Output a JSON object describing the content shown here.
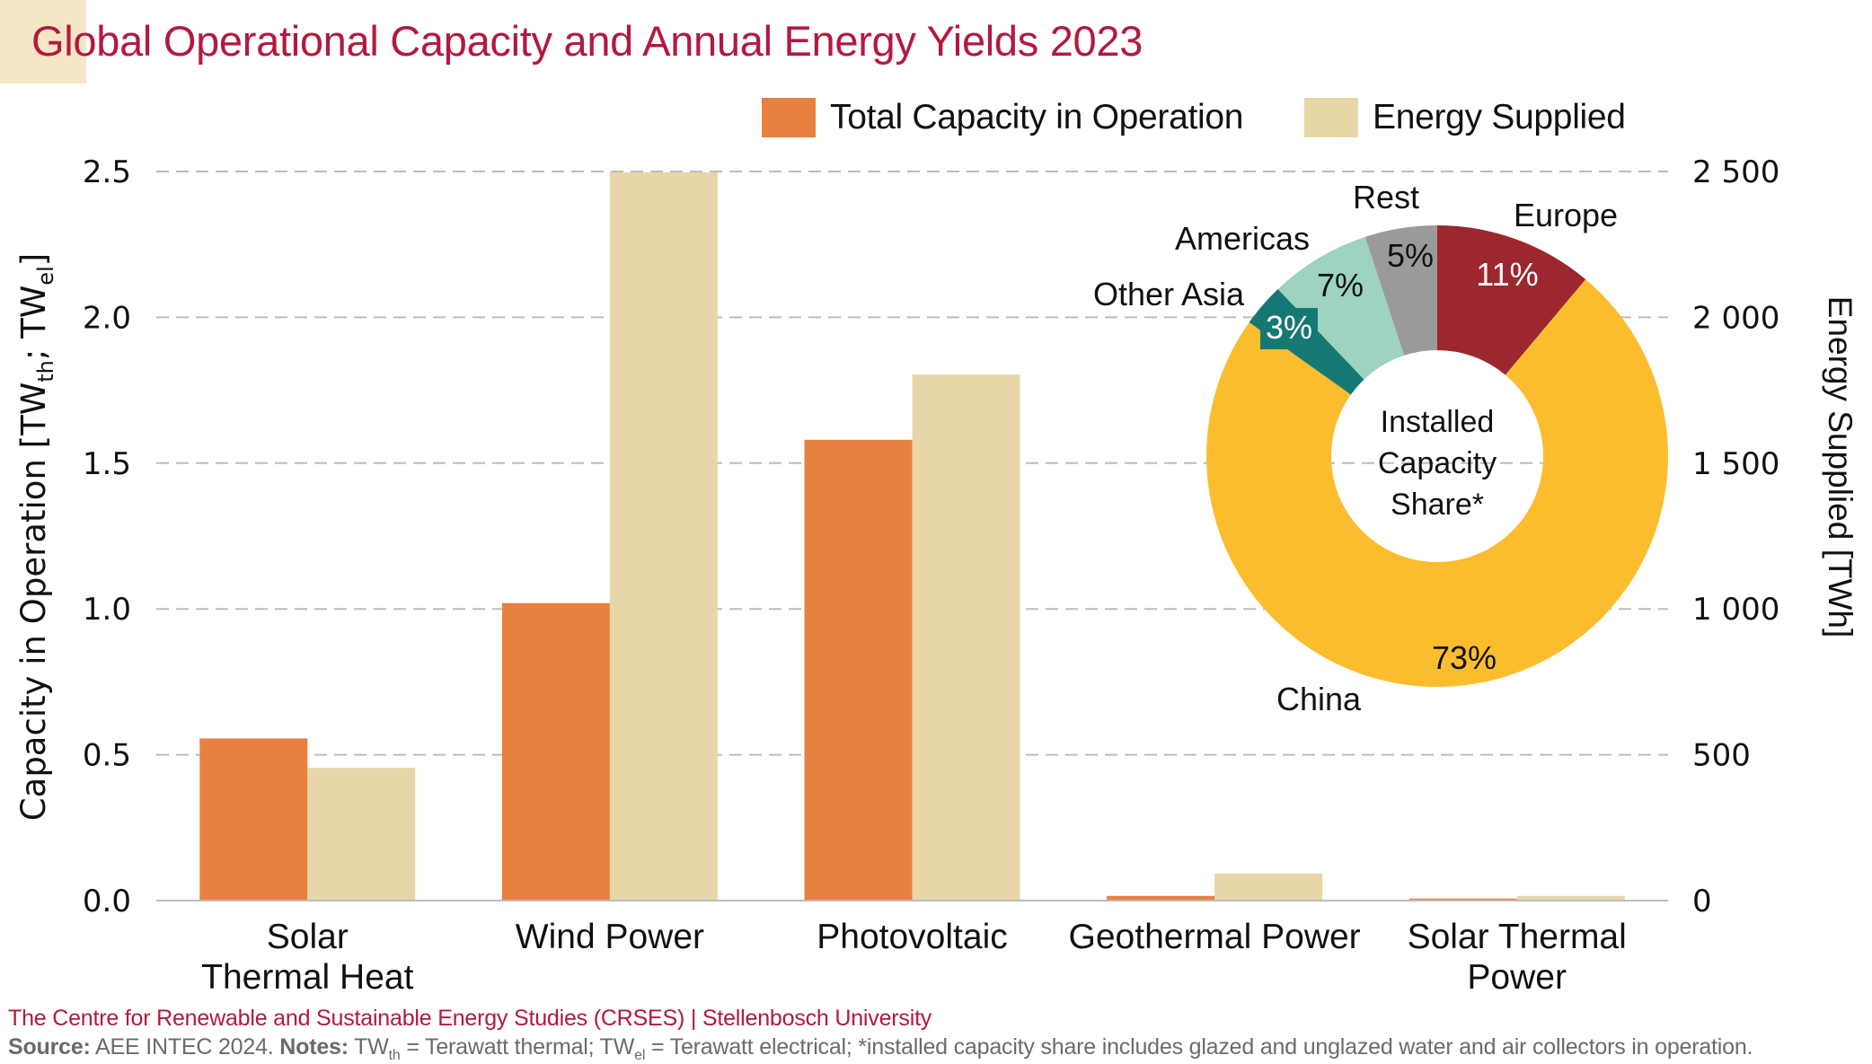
{
  "title": "Global Operational Capacity and Annual Energy Yields 2023",
  "colors": {
    "title": "#b3193f",
    "capacity": "#e8803f",
    "energy": "#e7d7a8",
    "grid": "#bdbdbd",
    "china": "#fbbd2e",
    "europe": "#9c2730",
    "rest": "#9a9a9a",
    "americas": "#9dd3bf",
    "other_asia": "#157872",
    "decoration": "#f6e6c8"
  },
  "legend": [
    {
      "label": "Total Capacity in Operation",
      "color_key": "capacity"
    },
    {
      "label": "Energy Supplied",
      "color_key": "energy"
    }
  ],
  "footer": {
    "credit": "The Centre for Renewable and Sustainable Energy Studies (CRSES) | Stellenbosch University",
    "source_label": "Source:",
    "source_text": " AEE INTEC 2024. ",
    "notes_label": "Notes:",
    "notes_tw": " TW",
    "notes_th_sub": "th",
    "notes_th_text": " = Terawatt thermal; TW",
    "notes_el_sub": "el",
    "notes_el_text": " = Terawatt electrical; *installed capacity share includes glazed and unglazed water and air collectors in operation."
  },
  "chart_data": [
    {
      "type": "bar",
      "title": "Global Operational Capacity and Annual Energy Yields 2023",
      "categories": [
        [
          "Solar",
          "Thermal Heat"
        ],
        [
          "Wind Power"
        ],
        [
          "Photovoltaic"
        ],
        [
          "Geothermal Power"
        ],
        [
          "Solar Thermal",
          "Power"
        ]
      ],
      "series": [
        {
          "name": "Total Capacity in Operation",
          "axis": "left",
          "unit": "TW",
          "values": [
            0.556,
            1.02,
            1.58,
            0.016,
            0.007
          ]
        },
        {
          "name": "Energy Supplied",
          "axis": "right",
          "unit": "TWh",
          "values": [
            455,
            2497,
            1804,
            93,
            16
          ]
        }
      ],
      "ylabel": "Capacity in Operation [TW_th; TW_el]",
      "ylabel_parts": {
        "main": "Capacity in Operation [TW",
        "sub1": "th",
        "mid": "; TW",
        "sub2": "el",
        "end": "]"
      },
      "ylim": [
        0,
        2.5
      ],
      "yticks": [
        "0.0",
        "0.5",
        "1.0",
        "1.5",
        "2.0",
        "2.5"
      ],
      "y2label": "Energy Supplied [TWh]",
      "y2lim": [
        0,
        2500
      ],
      "y2ticks": [
        "0",
        "500",
        "1 000",
        "1 500",
        "2 000",
        "2 500"
      ],
      "grid": true,
      "legend_position": "top-right"
    },
    {
      "type": "pie",
      "variant": "donut",
      "title": "Installed Capacity Share*",
      "center_label": [
        "Installed",
        "Capacity",
        "Share*"
      ],
      "slices": [
        {
          "label": "Europe",
          "value": 11,
          "display": "11%",
          "color_key": "europe",
          "text_color": "#ffffff"
        },
        {
          "label": "China",
          "value": 73,
          "display": "73%",
          "color_key": "china",
          "text_color": "#111111"
        },
        {
          "label": "Other Asia",
          "value": 3,
          "display": "3%",
          "color_key": "other_asia",
          "text_color": "#ffffff"
        },
        {
          "label": "Americas",
          "value": 7,
          "display": "7%",
          "color_key": "americas",
          "text_color": "#111111"
        },
        {
          "label": "Rest",
          "value": 5,
          "display": "5%",
          "color_key": "rest",
          "text_color": "#111111"
        }
      ],
      "start": "12 o'clock",
      "direction": "clockwise"
    }
  ]
}
